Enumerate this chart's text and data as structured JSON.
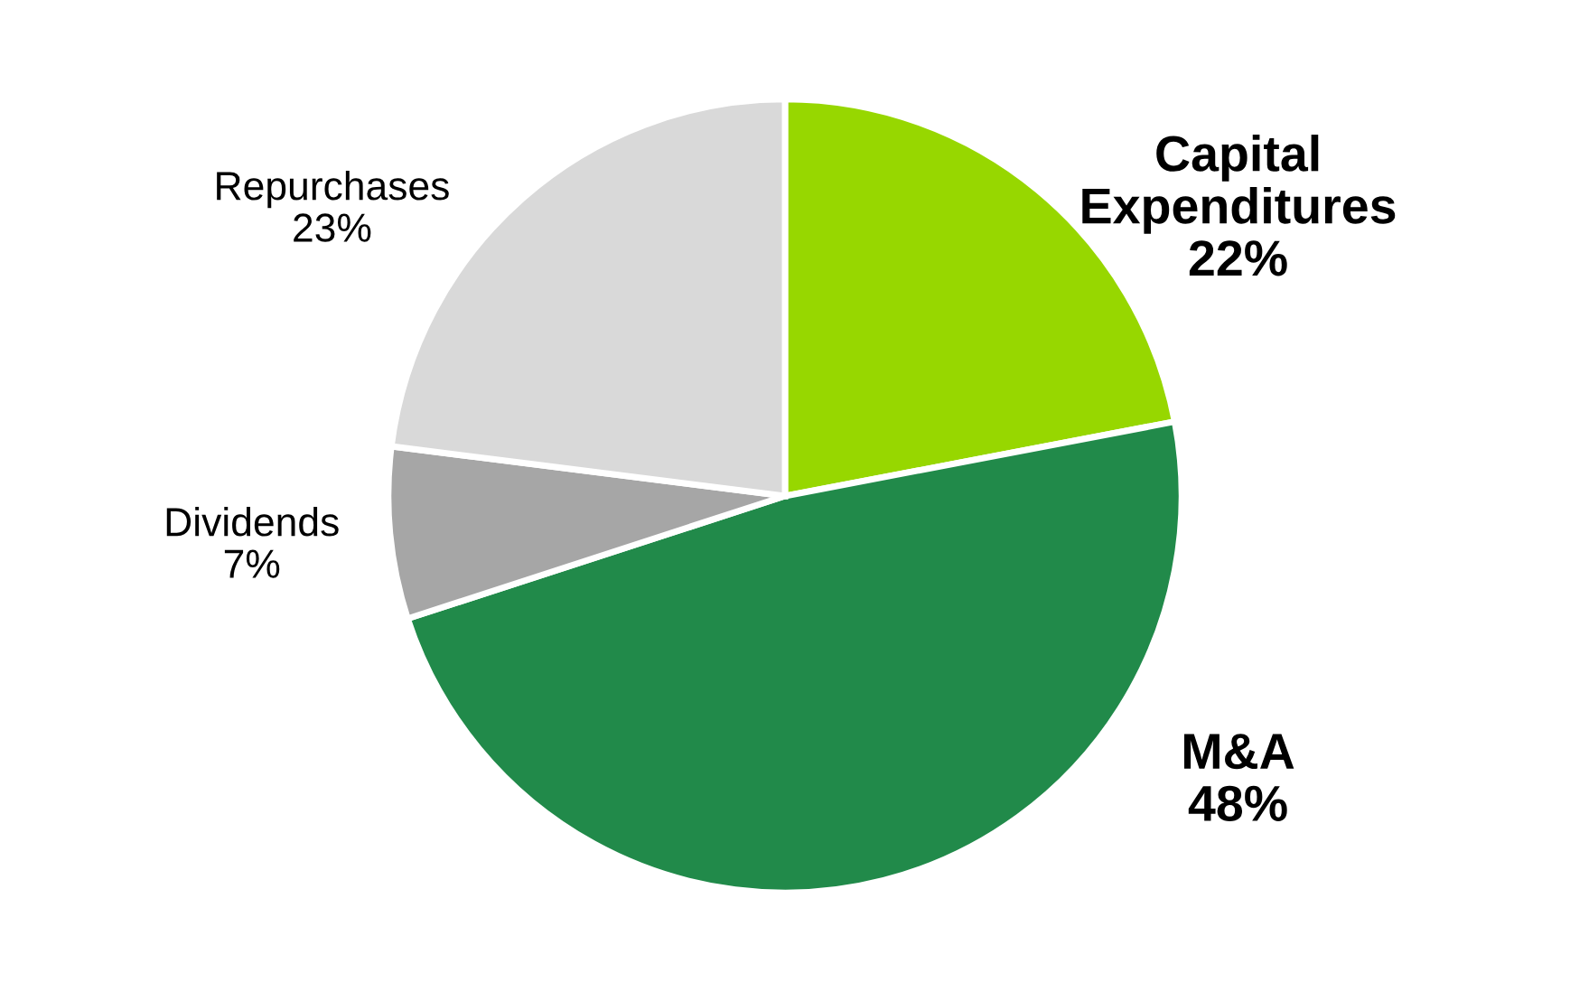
{
  "chart_data": {
    "type": "pie",
    "categories": [
      "Capital Expenditures",
      "M&A",
      "Dividends",
      "Repurchases"
    ],
    "values": [
      22,
      48,
      7,
      23
    ],
    "value_labels": [
      "22%",
      "48%",
      "7%",
      "23%"
    ],
    "colors": [
      "#97d700",
      "#218a4a",
      "#a6a6a6",
      "#d9d9d9"
    ]
  }
}
